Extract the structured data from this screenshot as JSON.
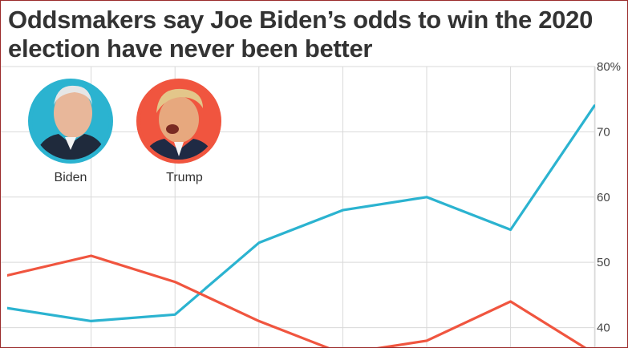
{
  "chart_data": {
    "type": "line",
    "title": "Oddsmakers say Joe Biden’s odds to win the 2020 election have never been better",
    "xlabel": "",
    "ylabel": "",
    "x": [
      0,
      1,
      2,
      3,
      4,
      5,
      6,
      7
    ],
    "ylim": [
      37,
      80
    ],
    "yticks": [
      "80%",
      "70",
      "60",
      "50",
      "40"
    ],
    "ytick_values": [
      80,
      70,
      60,
      50,
      40
    ],
    "grid": true,
    "legend": "top-left",
    "series": [
      {
        "name": "Biden",
        "color": "#2bb3d0",
        "values": [
          43,
          41,
          42,
          53,
          58,
          60,
          55,
          74
        ]
      },
      {
        "name": "Trump",
        "color": "#f0553f",
        "values": [
          48,
          51,
          47,
          41,
          36,
          38,
          44,
          36
        ]
      }
    ]
  }
}
